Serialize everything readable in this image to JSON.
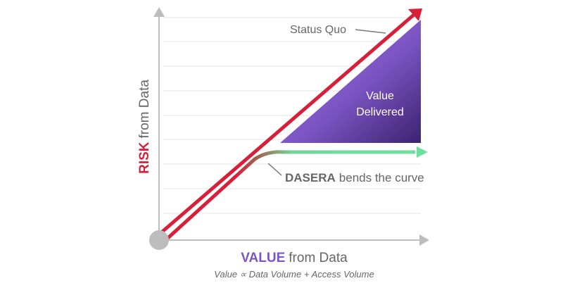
{
  "diagram": {
    "status_quo": "Status Quo",
    "value_delivered": [
      "Value",
      "Delivered"
    ],
    "dasera_strong": "DASERA",
    "dasera_rest": "bends the curve",
    "y_axis_strong": "RISK",
    "y_axis_rest": "from Data",
    "x_axis_strong": "VALUE",
    "x_axis_rest": "from Data",
    "formula": "Value ∝ Data Volume + Access Volume"
  }
}
